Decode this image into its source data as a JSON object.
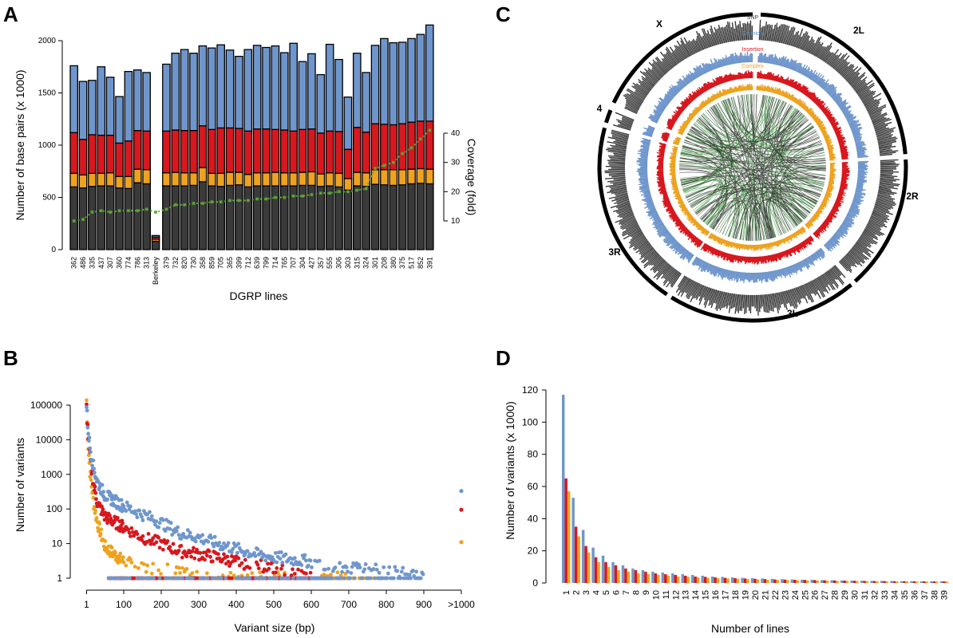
{
  "colors": {
    "snp": "#3a3a3a",
    "deletion": "#6f96cc",
    "insertion": "#d7181e",
    "complex": "#eea21f",
    "coverage": "#5aa531",
    "circos_links_green": "#3f9a3f",
    "circos_links_black": "#222222"
  },
  "panels": {
    "a": "A",
    "b": "B",
    "c": "C",
    "d": "D"
  },
  "chart_data": [
    {
      "id": "A",
      "type": "bar",
      "stacked": true,
      "xlabel": "DGRP lines",
      "ylabel": "Number of base pairs (x 1000)",
      "y2label": "Coverage (fold)",
      "ylim": [
        0,
        2200
      ],
      "yticks": [
        0,
        500,
        1000,
        1500,
        2000
      ],
      "y2lim": [
        5,
        45
      ],
      "y2ticks": [
        10,
        20,
        30,
        40
      ],
      "categories": [
        "362",
        "486",
        "335",
        "437",
        "307",
        "360",
        "774",
        "786",
        "313",
        "Berkeley",
        "379",
        "732",
        "820",
        "730",
        "358",
        "859",
        "705",
        "365",
        "399",
        "712",
        "639",
        "799",
        "714",
        "765",
        "707",
        "304",
        "427",
        "357",
        "555",
        "306",
        "303",
        "315",
        "324",
        "301",
        "208",
        "380",
        "375",
        "517",
        "852",
        "391"
      ],
      "series": [
        {
          "key": "snp",
          "values": [
            600,
            590,
            605,
            610,
            610,
            590,
            585,
            640,
            630,
            80,
            610,
            610,
            610,
            615,
            650,
            610,
            605,
            615,
            620,
            600,
            610,
            610,
            610,
            610,
            610,
            615,
            615,
            605,
            610,
            600,
            570,
            610,
            605,
            625,
            620,
            615,
            620,
            630,
            635,
            630
          ]
        },
        {
          "key": "complex",
          "values": [
            130,
            125,
            125,
            120,
            125,
            110,
            115,
            130,
            135,
            20,
            125,
            130,
            125,
            120,
            135,
            120,
            125,
            125,
            120,
            120,
            125,
            125,
            130,
            125,
            125,
            125,
            130,
            120,
            125,
            130,
            110,
            130,
            130,
            140,
            145,
            150,
            145,
            140,
            140,
            140
          ]
        },
        {
          "key": "insertion",
          "values": [
            390,
            340,
            370,
            365,
            360,
            320,
            340,
            370,
            370,
            20,
            400,
            405,
            405,
            405,
            400,
            420,
            435,
            425,
            420,
            415,
            420,
            420,
            410,
            410,
            400,
            410,
            410,
            390,
            400,
            400,
            280,
            430,
            390,
            440,
            435,
            430,
            440,
            450,
            455,
            460
          ]
        },
        {
          "key": "deletion",
          "values": [
            640,
            555,
            520,
            655,
            555,
            445,
            665,
            580,
            560,
            15,
            640,
            735,
            775,
            740,
            765,
            780,
            795,
            745,
            690,
            780,
            800,
            780,
            800,
            740,
            840,
            650,
            720,
            560,
            830,
            690,
            500,
            710,
            570,
            750,
            820,
            785,
            780,
            800,
            830,
            920
          ]
        }
      ],
      "coverage": [
        10,
        10.5,
        13,
        13.5,
        13,
        13.5,
        13.5,
        13.5,
        14,
        13,
        14,
        15.5,
        15.5,
        16,
        16,
        16.5,
        16.5,
        17,
        17,
        17,
        17.5,
        17.5,
        18,
        18,
        18.5,
        18.5,
        19,
        19.5,
        19.5,
        20,
        20,
        20.5,
        21,
        28,
        29,
        30,
        33,
        35,
        38,
        41
      ]
    },
    {
      "id": "B",
      "type": "scatter",
      "xlabel": "Variant size (bp)",
      "ylabel": "Number of variants",
      "xticks": [
        "1",
        "100",
        "200",
        "300",
        "400",
        "500",
        "600",
        "700",
        "800",
        "900",
        ">1000"
      ],
      "xtick_values": [
        1,
        100,
        200,
        300,
        400,
        500,
        600,
        700,
        800,
        900,
        1000
      ],
      "yticks": [
        "1",
        "10",
        "100",
        "1000",
        "10000",
        "100000"
      ],
      "ytick_values": [
        1,
        10,
        100,
        1000,
        10000,
        100000
      ],
      "ylim": [
        0.8,
        200000
      ],
      "log_y": true,
      "series": [
        {
          "key": "deletion",
          "points": [
            [
              1,
              100000
            ],
            [
              2,
              60000
            ],
            [
              5,
              20000
            ],
            [
              10,
              6000
            ],
            [
              20,
              1500
            ],
            [
              30,
              600
            ],
            [
              50,
              250
            ],
            [
              100,
              120
            ],
            [
              150,
              70
            ],
            [
              200,
              40
            ],
            [
              250,
              20
            ],
            [
              300,
              15
            ],
            [
              350,
              10
            ],
            [
              400,
              7
            ],
            [
              450,
              5
            ],
            [
              500,
              4
            ],
            [
              600,
              3
            ],
            [
              700,
              2
            ],
            [
              800,
              2
            ],
            [
              900,
              1
            ],
            [
              1000,
              330
            ]
          ]
        },
        {
          "key": "insertion",
          "points": [
            [
              1,
              90000
            ],
            [
              2,
              50000
            ],
            [
              5,
              15000
            ],
            [
              10,
              3000
            ],
            [
              20,
              500
            ],
            [
              30,
              150
            ],
            [
              50,
              60
            ],
            [
              100,
              30
            ],
            [
              150,
              15
            ],
            [
              200,
              10
            ],
            [
              250,
              6
            ],
            [
              300,
              5
            ],
            [
              350,
              4
            ],
            [
              400,
              3
            ],
            [
              500,
              2
            ],
            [
              600,
              1
            ],
            [
              1000,
              95
            ]
          ]
        },
        {
          "key": "complex",
          "points": [
            [
              1,
              140000
            ],
            [
              2,
              40000
            ],
            [
              5,
              8000
            ],
            [
              10,
              1200
            ],
            [
              20,
              150
            ],
            [
              30,
              40
            ],
            [
              50,
              8
            ],
            [
              100,
              3
            ],
            [
              150,
              2
            ],
            [
              200,
              2
            ],
            [
              300,
              1
            ],
            [
              400,
              1
            ],
            [
              500,
              1
            ],
            [
              700,
              1
            ],
            [
              1000,
              11
            ]
          ]
        }
      ]
    },
    {
      "id": "C",
      "type": "circos",
      "chromosomes": [
        "X",
        "2L",
        "2R",
        "3L",
        "3R",
        "4"
      ],
      "tracks": [
        "SNP",
        "Deletion",
        "Insertion",
        "Complex"
      ]
    },
    {
      "id": "D",
      "type": "bar",
      "xlabel": "Number of lines",
      "ylabel": "Number of variants (x 1000)",
      "ylim": [
        0,
        120
      ],
      "yticks": [
        0,
        20,
        40,
        60,
        80,
        100,
        120
      ],
      "categories": [
        "1",
        "2",
        "3",
        "4",
        "5",
        "6",
        "7",
        "8",
        "9",
        "10",
        "11",
        "12",
        "13",
        "14",
        "15",
        "16",
        "17",
        "18",
        "19",
        "20",
        "21",
        "22",
        "23",
        "24",
        "25",
        "26",
        "27",
        "28",
        "29",
        "30",
        "31",
        "32",
        "33",
        "34",
        "35",
        "36",
        "37",
        "38",
        "39"
      ],
      "series": [
        {
          "key": "deletion",
          "values": [
            117,
            53,
            33,
            22,
            17,
            13,
            11,
            9,
            8,
            7,
            6.5,
            6,
            5.5,
            5,
            4.5,
            4,
            3.8,
            3.5,
            3.2,
            3,
            2.8,
            2.6,
            2.4,
            2.2,
            2,
            2,
            1.8,
            1.7,
            1.6,
            1.5,
            1.4,
            1.3,
            1.3,
            1.2,
            1.1,
            1.1,
            1,
            1,
            1
          ]
        },
        {
          "key": "insertion",
          "values": [
            65,
            35,
            23,
            16,
            13,
            11,
            9,
            8,
            7,
            6,
            5.5,
            5,
            4.5,
            4,
            3.8,
            3.5,
            3.2,
            3,
            2.8,
            2.6,
            2.4,
            2.2,
            2.1,
            2,
            1.9,
            1.8,
            1.7,
            1.6,
            1.5,
            1.4,
            1.3,
            1.2,
            1.2,
            1.1,
            1.1,
            1,
            1,
            1,
            1
          ]
        },
        {
          "key": "complex",
          "values": [
            57,
            29,
            19,
            13,
            10,
            8,
            7,
            6,
            5.5,
            5,
            4.5,
            4,
            3.8,
            3.5,
            3.2,
            3,
            2.8,
            2.6,
            2.4,
            2.2,
            2,
            1.9,
            1.8,
            1.7,
            1.6,
            1.5,
            1.4,
            1.3,
            1.3,
            1.2,
            1.1,
            1.1,
            1,
            1,
            1,
            1,
            0.9,
            0.9,
            0.9
          ]
        }
      ]
    }
  ]
}
